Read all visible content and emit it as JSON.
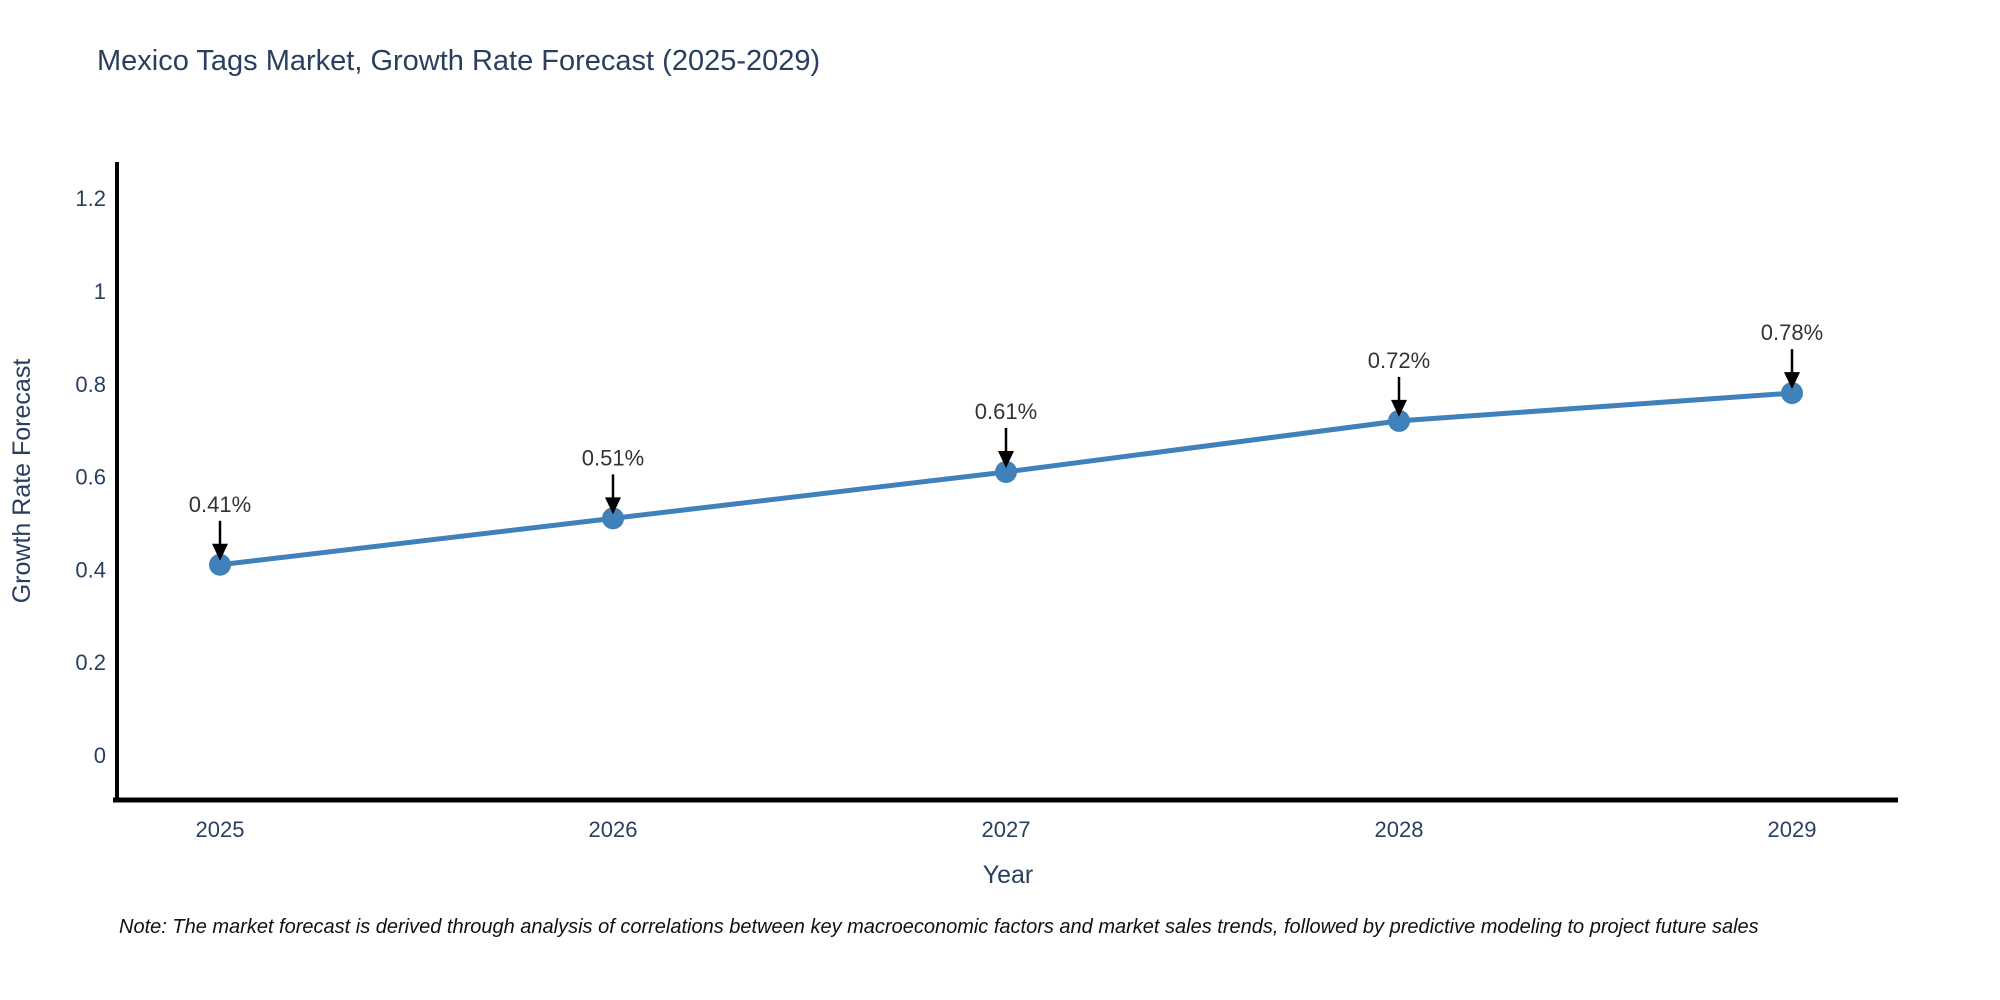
{
  "title": "Mexico Tags Market, Growth Rate Forecast (2025-2029)",
  "note": "Note: The market forecast is derived through analysis of correlations between key macroeconomic factors and market sales trends, followed by predictive modeling to project future sales",
  "colors": {
    "accent_blue": "#4081ba",
    "title_text": "#2a3f5f",
    "tick_text": "#2a3f5f",
    "axis_title_text": "#2a3f5f",
    "annotation_text": "#333333",
    "annotation_arrow": "#000000",
    "axis_line": "#000000",
    "background": "#ffffff"
  },
  "chart_data": {
    "type": "line",
    "title": "Mexico Tags Market, Growth Rate Forecast (2025-2029)",
    "xlabel": "Year",
    "ylabel": "Growth Rate Forecast",
    "x": [
      "2025",
      "2026",
      "2027",
      "2028",
      "2029"
    ],
    "y": [
      0.41,
      0.51,
      0.61,
      0.72,
      0.78
    ],
    "point_labels": [
      "0.41%",
      "0.51%",
      "0.61%",
      "0.72%",
      "0.78%"
    ],
    "ytick_labels": [
      "0",
      "0.2",
      "0.4",
      "0.6",
      "0.8",
      "1",
      "1.2"
    ],
    "ytick_values": [
      0,
      0.2,
      0.4,
      0.6,
      0.8,
      1,
      1.2
    ],
    "ylim": [
      -0.1,
      1.28
    ],
    "grid": false,
    "legend": false,
    "marker_shape": "circle",
    "annotation_style": "value label above point with downward black arrow"
  }
}
